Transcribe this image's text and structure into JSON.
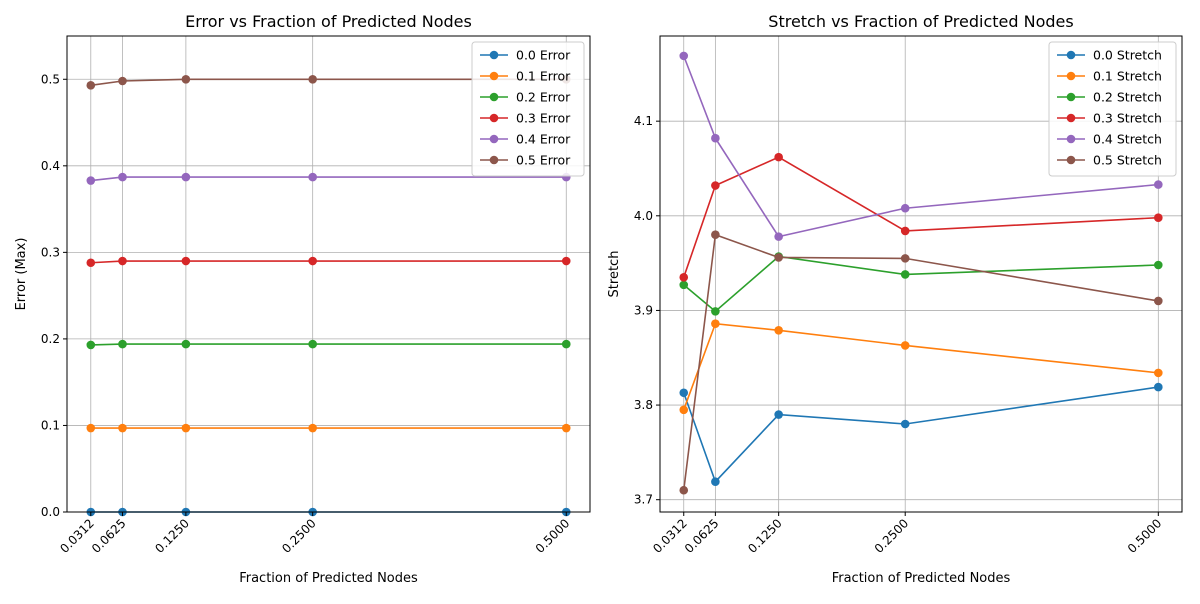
{
  "chart_data": [
    {
      "type": "line",
      "title": "Error vs Fraction of Predicted Nodes",
      "xlabel": "Fraction of Predicted Nodes",
      "ylabel": "Error (Max)",
      "x": [
        0.03125,
        0.0625,
        0.125,
        0.25,
        0.5
      ],
      "xtick_labels": [
        "0.0312",
        "0.0625",
        "0.1250",
        "0.2500",
        "0.5000"
      ],
      "xlim": [
        0.0078,
        0.5234
      ],
      "ylim": [
        0.0,
        0.55
      ],
      "yticks": [
        0.0,
        0.1,
        0.2,
        0.3,
        0.4,
        0.5
      ],
      "ytick_labels": [
        "0.0",
        "0.1",
        "0.2",
        "0.3",
        "0.4",
        "0.5"
      ],
      "grid": true,
      "legend_position": "top-right",
      "series": [
        {
          "name": "0.0 Error",
          "color": "#1f77b4",
          "values": [
            0.0,
            0.0,
            0.0,
            0.0,
            0.0
          ]
        },
        {
          "name": "0.1 Error",
          "color": "#ff7f0e",
          "values": [
            0.097,
            0.097,
            0.097,
            0.097,
            0.097
          ]
        },
        {
          "name": "0.2 Error",
          "color": "#2ca02c",
          "values": [
            0.193,
            0.194,
            0.194,
            0.194,
            0.194
          ]
        },
        {
          "name": "0.3 Error",
          "color": "#d62728",
          "values": [
            0.288,
            0.29,
            0.29,
            0.29,
            0.29
          ]
        },
        {
          "name": "0.4 Error",
          "color": "#9467bd",
          "values": [
            0.383,
            0.387,
            0.387,
            0.387,
            0.387
          ]
        },
        {
          "name": "0.5 Error",
          "color": "#8c564b",
          "values": [
            0.493,
            0.498,
            0.5,
            0.5,
            0.5
          ]
        }
      ]
    },
    {
      "type": "line",
      "title": "Stretch vs Fraction of Predicted Nodes",
      "xlabel": "Fraction of Predicted Nodes",
      "ylabel": "Stretch",
      "x": [
        0.03125,
        0.0625,
        0.125,
        0.25,
        0.5
      ],
      "xtick_labels": [
        "0.0312",
        "0.0625",
        "0.1250",
        "0.2500",
        "0.5000"
      ],
      "xlim": [
        0.0078,
        0.5234
      ],
      "ylim": [
        3.687,
        4.19
      ],
      "yticks": [
        3.7,
        3.8,
        3.9,
        4.0,
        4.1
      ],
      "ytick_labels": [
        "3.7",
        "3.8",
        "3.9",
        "4.0",
        "4.1"
      ],
      "grid": true,
      "legend_position": "top-right",
      "series": [
        {
          "name": "0.0 Stretch",
          "color": "#1f77b4",
          "values": [
            3.813,
            3.719,
            3.79,
            3.78,
            3.819
          ]
        },
        {
          "name": "0.1 Stretch",
          "color": "#ff7f0e",
          "values": [
            3.795,
            3.886,
            3.879,
            3.863,
            3.834
          ]
        },
        {
          "name": "0.2 Stretch",
          "color": "#2ca02c",
          "values": [
            3.927,
            3.899,
            3.957,
            3.938,
            3.948
          ]
        },
        {
          "name": "0.3 Stretch",
          "color": "#d62728",
          "values": [
            3.935,
            4.032,
            4.062,
            3.984,
            3.998
          ]
        },
        {
          "name": "0.4 Stretch",
          "color": "#9467bd",
          "values": [
            4.169,
            4.082,
            3.978,
            4.008,
            4.033
          ]
        },
        {
          "name": "0.5 Stretch",
          "color": "#8c564b",
          "values": [
            3.71,
            3.98,
            3.956,
            3.955,
            3.91
          ]
        }
      ]
    }
  ]
}
